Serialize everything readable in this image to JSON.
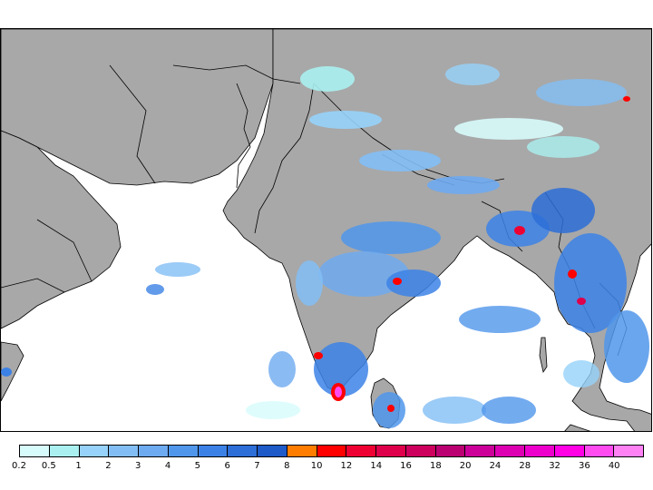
{
  "map": {
    "land_color": "#a8a8a8",
    "ocean_color": "#ffffff",
    "border_color": "#000000",
    "layer": "precipitation"
  },
  "legend": {
    "labels": [
      "0.2",
      "0.5",
      "1",
      "2",
      "3",
      "4",
      "5",
      "6",
      "7",
      "8",
      "10",
      "12",
      "14",
      "16",
      "18",
      "20",
      "24",
      "28",
      "32",
      "36",
      "40"
    ],
    "colors": [
      "#d7fbfb",
      "#aaf0f0",
      "#96d2fa",
      "#82bef5",
      "#6eaaf0",
      "#5096eb",
      "#3c82e6",
      "#2d6ed7",
      "#1e5ac8",
      "#ff7d00",
      "#ff0000",
      "#ef0033",
      "#de004a",
      "#cd005e",
      "#bb0072",
      "#cc0099",
      "#dd00b3",
      "#ee00cc",
      "#ff00e5",
      "#ff4bf0",
      "#ff82f5"
    ]
  }
}
